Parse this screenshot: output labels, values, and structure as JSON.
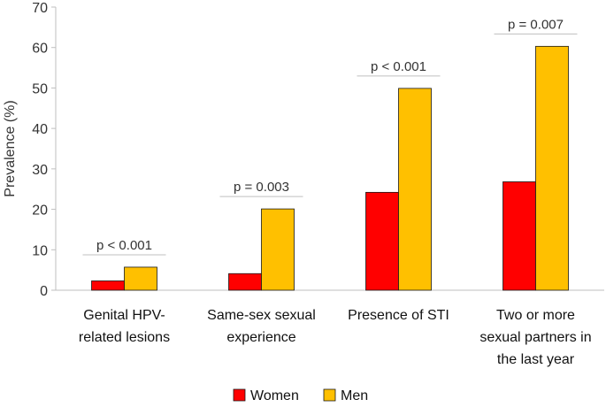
{
  "chart_data": {
    "type": "bar",
    "title": "",
    "xlabel": "",
    "ylabel": "Prevalence (%)",
    "ylim": [
      0,
      70
    ],
    "yticks": [
      0,
      10,
      20,
      30,
      40,
      50,
      60,
      70
    ],
    "grid": false,
    "legend_position": "bottom",
    "categories": [
      [
        "Genital HPV-",
        "related lesions"
      ],
      [
        "Same-sex sexual",
        "experience"
      ],
      [
        "Presence of STI"
      ],
      [
        "Two or more",
        "sexual partners in",
        "the last year"
      ]
    ],
    "series": [
      {
        "name": "Women",
        "color": "#ff0000",
        "values": [
          2.3,
          4.1,
          24.2,
          26.8
        ]
      },
      {
        "name": "Men",
        "color": "#ffc000",
        "values": [
          5.7,
          20.1,
          49.9,
          60.3
        ]
      }
    ],
    "annotations": [
      "p < 0.001",
      "p = 0.003",
      "p < 0.001",
      "p = 0.007"
    ]
  }
}
